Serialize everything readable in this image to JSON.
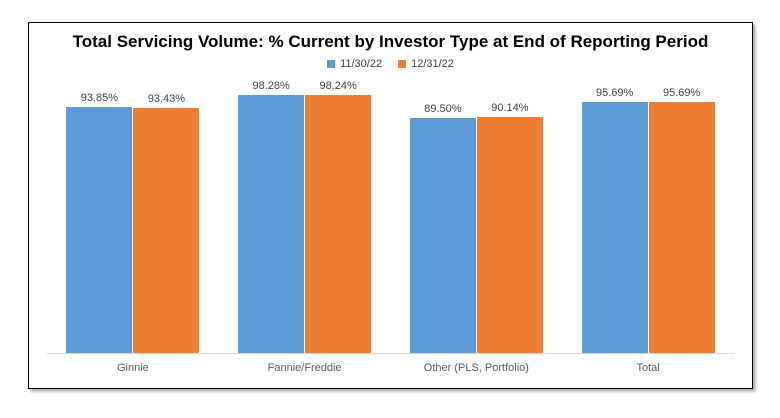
{
  "chart_data": {
    "type": "bar",
    "title": "Total Servicing Volume: % Current by Investor Type at End of Reporting Period",
    "categories": [
      "Ginnie",
      "Fannie/Freddie",
      "Other (PLS, Portfolio)",
      "Total"
    ],
    "series": [
      {
        "name": "11/30/22",
        "color": "#5B9BD5",
        "values": [
          93.85,
          98.28,
          89.5,
          95.69
        ],
        "labels": [
          "93.85%",
          "98.28%",
          "89.50%",
          "95.69%"
        ]
      },
      {
        "name": "12/31/22",
        "color": "#ED7D31",
        "values": [
          93.43,
          98.24,
          90.14,
          95.69
        ],
        "labels": [
          "93.43%",
          "98.24%",
          "90.14%",
          "95.69%"
        ]
      }
    ],
    "xlabel": "",
    "ylabel": "",
    "ylim": [
      0,
      101
    ],
    "grid": false,
    "legend_position": "top",
    "data_labels_shown": true,
    "frame_border_color": "#000000",
    "axis_line_color": "#d9d9d9",
    "data_label_color": "#404040",
    "category_label_color": "#595959",
    "background_color": "#ffffff"
  }
}
